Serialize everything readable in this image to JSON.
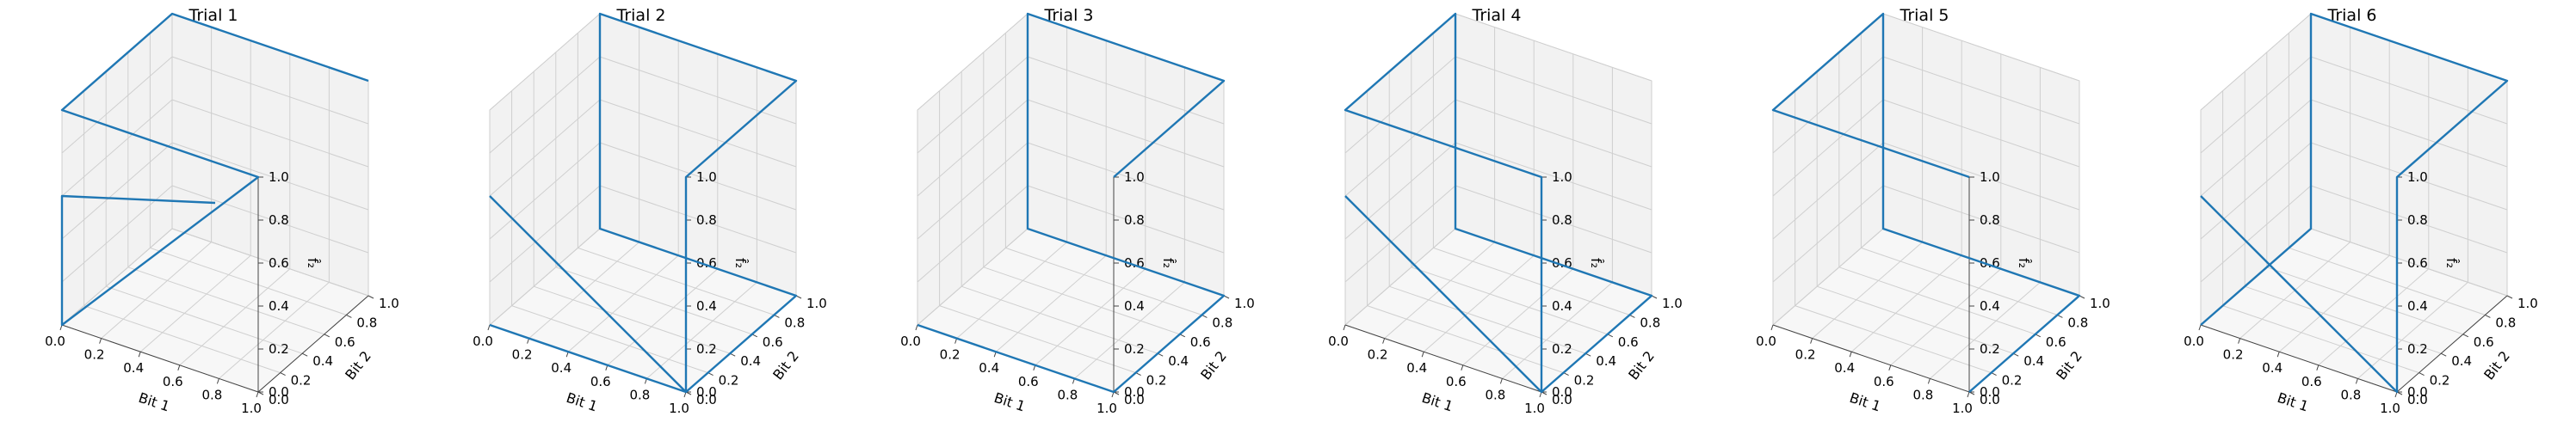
{
  "figure": {
    "subplots": [
      {
        "title": "Trial 1"
      },
      {
        "title": "Trial 2"
      },
      {
        "title": "Trial 3"
      },
      {
        "title": "Trial 4"
      },
      {
        "title": "Trial 5"
      },
      {
        "title": "Trial 6"
      }
    ]
  },
  "chart_data": [
    {
      "type": "line3d",
      "title": "Trial 1",
      "xlabel": "Bit 1",
      "ylabel": "Bit 2",
      "zlabel": "f̂₂",
      "x": [
        1,
        0,
        0,
        1,
        0,
        0,
        0.5
      ],
      "y": [
        1,
        1,
        0,
        0,
        0,
        0,
        0.5
      ],
      "z": [
        1,
        1,
        1,
        1,
        0,
        0.6,
        0.5
      ],
      "xlim": [
        0,
        1
      ],
      "ylim": [
        0,
        1
      ],
      "zlim": [
        0,
        1
      ],
      "xticks": [
        "0.0",
        "0.2",
        "0.4",
        "0.6",
        "0.8",
        "1.0"
      ],
      "yticks": [
        "0.0",
        "0.2",
        "0.4",
        "0.6",
        "0.8",
        "1.0"
      ],
      "zticks": [
        "0.0",
        "0.2",
        "0.4",
        "0.6",
        "0.8",
        "1.0"
      ],
      "grid": true
    },
    {
      "type": "line3d",
      "title": "Trial 2",
      "xlabel": "Bit 1",
      "ylabel": "Bit 2",
      "zlabel": "f̂₂",
      "x": [
        0,
        1,
        1,
        0,
        0,
        1,
        1,
        1,
        0
      ],
      "y": [
        0,
        0,
        1,
        1,
        1,
        1,
        0,
        0,
        0
      ],
      "z": [
        0,
        0,
        0,
        0,
        1,
        1,
        1,
        0,
        0.6
      ],
      "xlim": [
        0,
        1
      ],
      "ylim": [
        0,
        1
      ],
      "zlim": [
        0,
        1
      ],
      "xticks": [
        "0.0",
        "0.2",
        "0.4",
        "0.6",
        "0.8",
        "1.0"
      ],
      "yticks": [
        "0.0",
        "0.2",
        "0.4",
        "0.6",
        "0.8",
        "1.0"
      ],
      "zticks": [
        "0.0",
        "0.2",
        "0.4",
        "0.6",
        "0.8",
        "1.0"
      ],
      "grid": true
    },
    {
      "type": "line3d",
      "title": "Trial 3",
      "xlabel": "Bit 1",
      "ylabel": "Bit 2",
      "zlabel": "f̂₂",
      "x": [
        0,
        1,
        1,
        0,
        0,
        1,
        1
      ],
      "y": [
        0,
        0,
        1,
        1,
        1,
        1,
        0
      ],
      "z": [
        0,
        0,
        0,
        0,
        1,
        1,
        1
      ],
      "xlim": [
        0,
        1
      ],
      "ylim": [
        0,
        1
      ],
      "zlim": [
        0,
        1
      ],
      "xticks": [
        "0.0",
        "0.2",
        "0.4",
        "0.6",
        "0.8",
        "1.0"
      ],
      "yticks": [
        "0.0",
        "0.2",
        "0.4",
        "0.6",
        "0.8",
        "1.0"
      ],
      "zticks": [
        "0.0",
        "0.2",
        "0.4",
        "0.6",
        "0.8",
        "1.0"
      ],
      "grid": true
    },
    {
      "type": "line3d",
      "title": "Trial 4",
      "xlabel": "Bit 1",
      "ylabel": "Bit 2",
      "zlabel": "f̂₂",
      "x": [
        1,
        1,
        0,
        0,
        0,
        1,
        1,
        1,
        0
      ],
      "y": [
        0,
        1,
        1,
        1,
        0,
        0,
        0,
        0,
        0
      ],
      "z": [
        0,
        0,
        0,
        1,
        1,
        1,
        1,
        0,
        0.6
      ],
      "xlim": [
        0,
        1
      ],
      "ylim": [
        0,
        1
      ],
      "zlim": [
        0,
        1
      ],
      "xticks": [
        "0.0",
        "0.2",
        "0.4",
        "0.6",
        "0.8",
        "1.0"
      ],
      "yticks": [
        "0.0",
        "0.2",
        "0.4",
        "0.6",
        "0.8",
        "1.0"
      ],
      "zticks": [
        "0.0",
        "0.2",
        "0.4",
        "0.6",
        "0.8",
        "1.0"
      ],
      "grid": true
    },
    {
      "type": "line3d",
      "title": "Trial 5",
      "xlabel": "Bit 1",
      "ylabel": "Bit 2",
      "zlabel": "f̂₂",
      "x": [
        1,
        1,
        0,
        0,
        0,
        1,
        1
      ],
      "y": [
        0,
        1,
        1,
        1,
        0,
        0,
        0
      ],
      "z": [
        0,
        0,
        0,
        1,
        1,
        1,
        1
      ],
      "xlim": [
        0,
        1
      ],
      "ylim": [
        0,
        1
      ],
      "zlim": [
        0,
        1
      ],
      "xticks": [
        "0.0",
        "0.2",
        "0.4",
        "0.6",
        "0.8",
        "1.0"
      ],
      "yticks": [
        "0.0",
        "0.2",
        "0.4",
        "0.6",
        "0.8",
        "1.0"
      ],
      "zticks": [
        "0.0",
        "0.2",
        "0.4",
        "0.6",
        "0.8",
        "1.0"
      ],
      "grid": true
    },
    {
      "type": "line3d",
      "title": "Trial 6",
      "xlabel": "Bit 1",
      "ylabel": "Bit 2",
      "zlabel": "f̂₂",
      "x": [
        0,
        0,
        0,
        1,
        1,
        1,
        1,
        1,
        0
      ],
      "y": [
        0,
        1,
        1,
        1,
        0,
        0,
        0,
        0,
        0
      ],
      "z": [
        0,
        0,
        1,
        1,
        1,
        0,
        0.9,
        0,
        0.6
      ],
      "xlim": [
        0,
        1
      ],
      "ylim": [
        0,
        1
      ],
      "zlim": [
        0,
        1
      ],
      "xticks": [
        "0.0",
        "0.2",
        "0.4",
        "0.6",
        "0.8",
        "1.0"
      ],
      "yticks": [
        "0.0",
        "0.2",
        "0.4",
        "0.6",
        "0.8",
        "1.0"
      ],
      "zticks": [
        "0.0",
        "0.2",
        "0.4",
        "0.6",
        "0.8",
        "1.0"
      ],
      "grid": true
    }
  ],
  "colors": {
    "line": "#1f77b4",
    "pane_back": "#f2f2f2",
    "pane_floor": "#f7f7f7",
    "grid": "#cfcfcf",
    "edge": "#bdbdbd"
  }
}
